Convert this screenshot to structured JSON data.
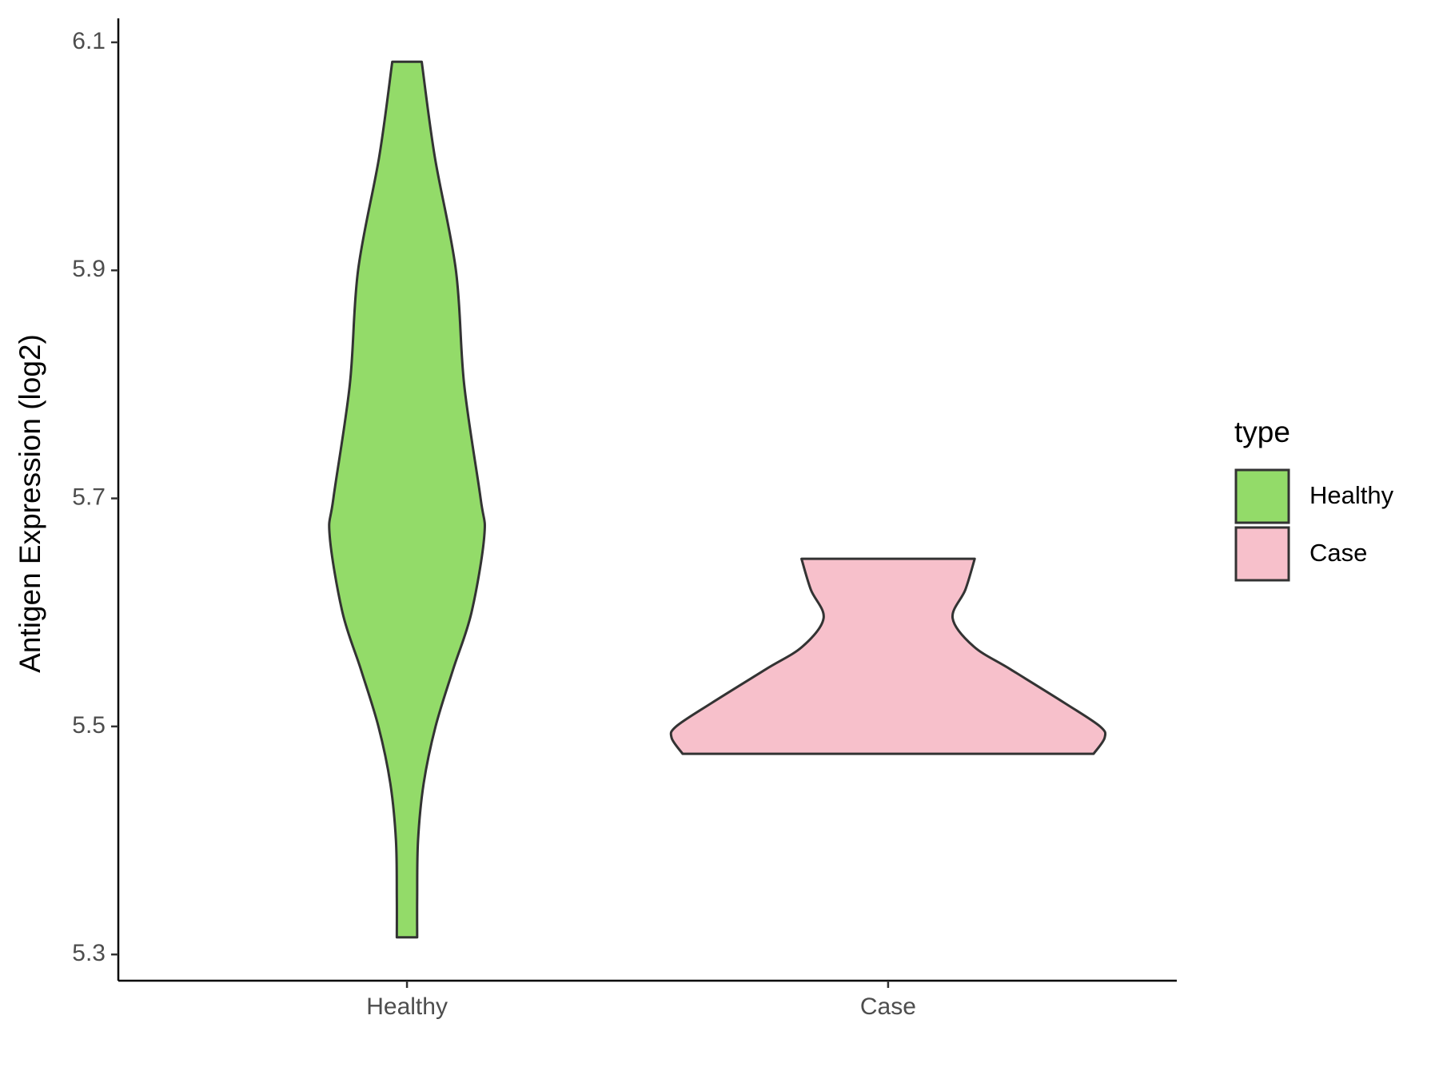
{
  "chart_data": {
    "type": "violin",
    "y_label": "Antigen Expression (log2)",
    "categories": [
      "Healthy",
      "Case"
    ],
    "legend_title": "type",
    "legend_position": "right",
    "grid": false,
    "ylim": [
      5.277,
      6.121
    ],
    "yticks": [
      5.3,
      5.5,
      5.7,
      5.9,
      6.1
    ],
    "series": [
      {
        "name": "Healthy",
        "color": "#93DB69",
        "y": [
          5.315,
          5.35,
          5.4,
          5.45,
          5.5,
          5.55,
          5.6,
          5.667,
          5.7,
          5.8,
          5.9,
          6.0,
          6.083
        ],
        "widths": [
          0.047,
          0.047,
          0.051,
          0.077,
          0.132,
          0.213,
          0.298,
          0.357,
          0.34,
          0.264,
          0.226,
          0.128,
          0.068
        ]
      },
      {
        "name": "Case",
        "color": "#F7C0CB",
        "y": [
          5.476,
          5.49,
          5.5,
          5.52,
          5.55,
          5.57,
          5.595,
          5.62,
          5.647
        ],
        "widths": [
          0.949,
          1,
          0.979,
          0.82,
          0.566,
          0.396,
          0.298,
          0.357,
          0.4
        ]
      }
    ]
  }
}
